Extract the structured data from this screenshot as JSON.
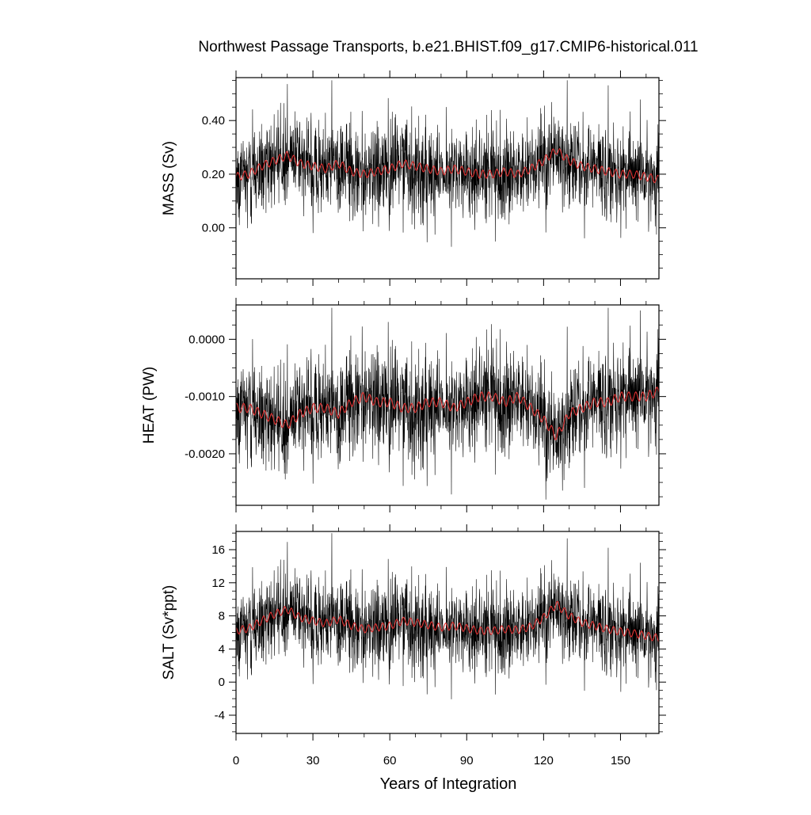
{
  "chart_data": {
    "type": "line",
    "title": "Northwest Passage Transports, b.e21.BHIST.f09_g17.CMIP6-historical.011",
    "xlabel": "Years of Integration",
    "xlim": [
      0,
      165
    ],
    "xticks": [
      0,
      30,
      60,
      90,
      120,
      150
    ],
    "xtick_labels": [
      "0",
      "30",
      "60",
      "90",
      "120",
      "150"
    ],
    "grid": false,
    "legend": "none",
    "colors": {
      "monthly": "#000000",
      "smoothed": "#e03030"
    },
    "panels": [
      {
        "ylabel": "MASS (Sv)",
        "ylim": [
          -0.19,
          0.56
        ],
        "yticks": [
          0.0,
          0.2,
          0.4
        ],
        "ytick_labels": [
          "0.00",
          "0.20",
          "0.40"
        ],
        "monthly": {
          "mean": 0.215,
          "sd": 0.085,
          "min": -0.18,
          "max": 0.55
        },
        "smoothed_anchors": [
          [
            0,
            0.19
          ],
          [
            5,
            0.2
          ],
          [
            10,
            0.23
          ],
          [
            15,
            0.25
          ],
          [
            20,
            0.27
          ],
          [
            25,
            0.24
          ],
          [
            30,
            0.23
          ],
          [
            35,
            0.22
          ],
          [
            40,
            0.24
          ],
          [
            45,
            0.21
          ],
          [
            50,
            0.2
          ],
          [
            55,
            0.21
          ],
          [
            60,
            0.22
          ],
          [
            65,
            0.24
          ],
          [
            70,
            0.23
          ],
          [
            75,
            0.22
          ],
          [
            80,
            0.21
          ],
          [
            85,
            0.22
          ],
          [
            90,
            0.21
          ],
          [
            95,
            0.2
          ],
          [
            100,
            0.2
          ],
          [
            105,
            0.21
          ],
          [
            110,
            0.2
          ],
          [
            115,
            0.22
          ],
          [
            120,
            0.25
          ],
          [
            125,
            0.29
          ],
          [
            130,
            0.25
          ],
          [
            135,
            0.23
          ],
          [
            140,
            0.22
          ],
          [
            145,
            0.21
          ],
          [
            150,
            0.2
          ],
          [
            155,
            0.2
          ],
          [
            160,
            0.19
          ],
          [
            165,
            0.18
          ]
        ]
      },
      {
        "ylabel": "HEAT (PW)",
        "ylim": [
          -0.0029,
          0.0006
        ],
        "yticks": [
          0.0,
          -0.001,
          -0.002
        ],
        "ytick_labels": [
          "0.0000",
          "-0.0010",
          "-0.0020"
        ],
        "monthly": {
          "mean": -0.00115,
          "sd": 0.00045,
          "min": -0.0028,
          "max": 0.00055
        },
        "smoothed_anchors": [
          [
            0,
            -0.0012
          ],
          [
            5,
            -0.0012
          ],
          [
            10,
            -0.0013
          ],
          [
            15,
            -0.0014
          ],
          [
            20,
            -0.0015
          ],
          [
            25,
            -0.0013
          ],
          [
            30,
            -0.0012
          ],
          [
            35,
            -0.0012
          ],
          [
            40,
            -0.0013
          ],
          [
            45,
            -0.0011
          ],
          [
            50,
            -0.001
          ],
          [
            55,
            -0.0011
          ],
          [
            60,
            -0.0011
          ],
          [
            65,
            -0.0012
          ],
          [
            70,
            -0.0012
          ],
          [
            75,
            -0.0011
          ],
          [
            80,
            -0.0011
          ],
          [
            85,
            -0.0012
          ],
          [
            90,
            -0.0011
          ],
          [
            95,
            -0.001
          ],
          [
            100,
            -0.001
          ],
          [
            105,
            -0.0011
          ],
          [
            110,
            -0.001
          ],
          [
            115,
            -0.0012
          ],
          [
            120,
            -0.0014
          ],
          [
            125,
            -0.0017
          ],
          [
            130,
            -0.0013
          ],
          [
            135,
            -0.0012
          ],
          [
            140,
            -0.0011
          ],
          [
            145,
            -0.0011
          ],
          [
            150,
            -0.001
          ],
          [
            155,
            -0.001
          ],
          [
            160,
            -0.001
          ],
          [
            165,
            -0.0009
          ]
        ]
      },
      {
        "ylabel": "SALT (Sv*ppt)",
        "ylim": [
          -6.2,
          18.2
        ],
        "yticks": [
          -4,
          0,
          4,
          8,
          12,
          16
        ],
        "ytick_labels": [
          "-4",
          "0",
          "4",
          "8",
          "12",
          "16"
        ],
        "monthly": {
          "mean": 6.6,
          "sd": 2.6,
          "min": -6.0,
          "max": 18.0
        },
        "smoothed_anchors": [
          [
            0,
            6.2
          ],
          [
            5,
            6.5
          ],
          [
            10,
            7.4
          ],
          [
            15,
            8.2
          ],
          [
            20,
            8.8
          ],
          [
            25,
            7.8
          ],
          [
            30,
            7.4
          ],
          [
            35,
            7.1
          ],
          [
            40,
            7.6
          ],
          [
            45,
            6.8
          ],
          [
            50,
            6.4
          ],
          [
            55,
            6.6
          ],
          [
            60,
            6.8
          ],
          [
            65,
            7.4
          ],
          [
            70,
            7.2
          ],
          [
            75,
            6.9
          ],
          [
            80,
            6.6
          ],
          [
            85,
            6.8
          ],
          [
            90,
            6.5
          ],
          [
            95,
            6.2
          ],
          [
            100,
            6.2
          ],
          [
            105,
            6.4
          ],
          [
            110,
            6.3
          ],
          [
            115,
            6.7
          ],
          [
            120,
            7.8
          ],
          [
            125,
            9.4
          ],
          [
            130,
            8.0
          ],
          [
            135,
            7.2
          ],
          [
            140,
            6.8
          ],
          [
            145,
            6.4
          ],
          [
            150,
            6.1
          ],
          [
            155,
            5.9
          ],
          [
            160,
            5.6
          ],
          [
            165,
            5.3
          ]
        ]
      }
    ]
  }
}
